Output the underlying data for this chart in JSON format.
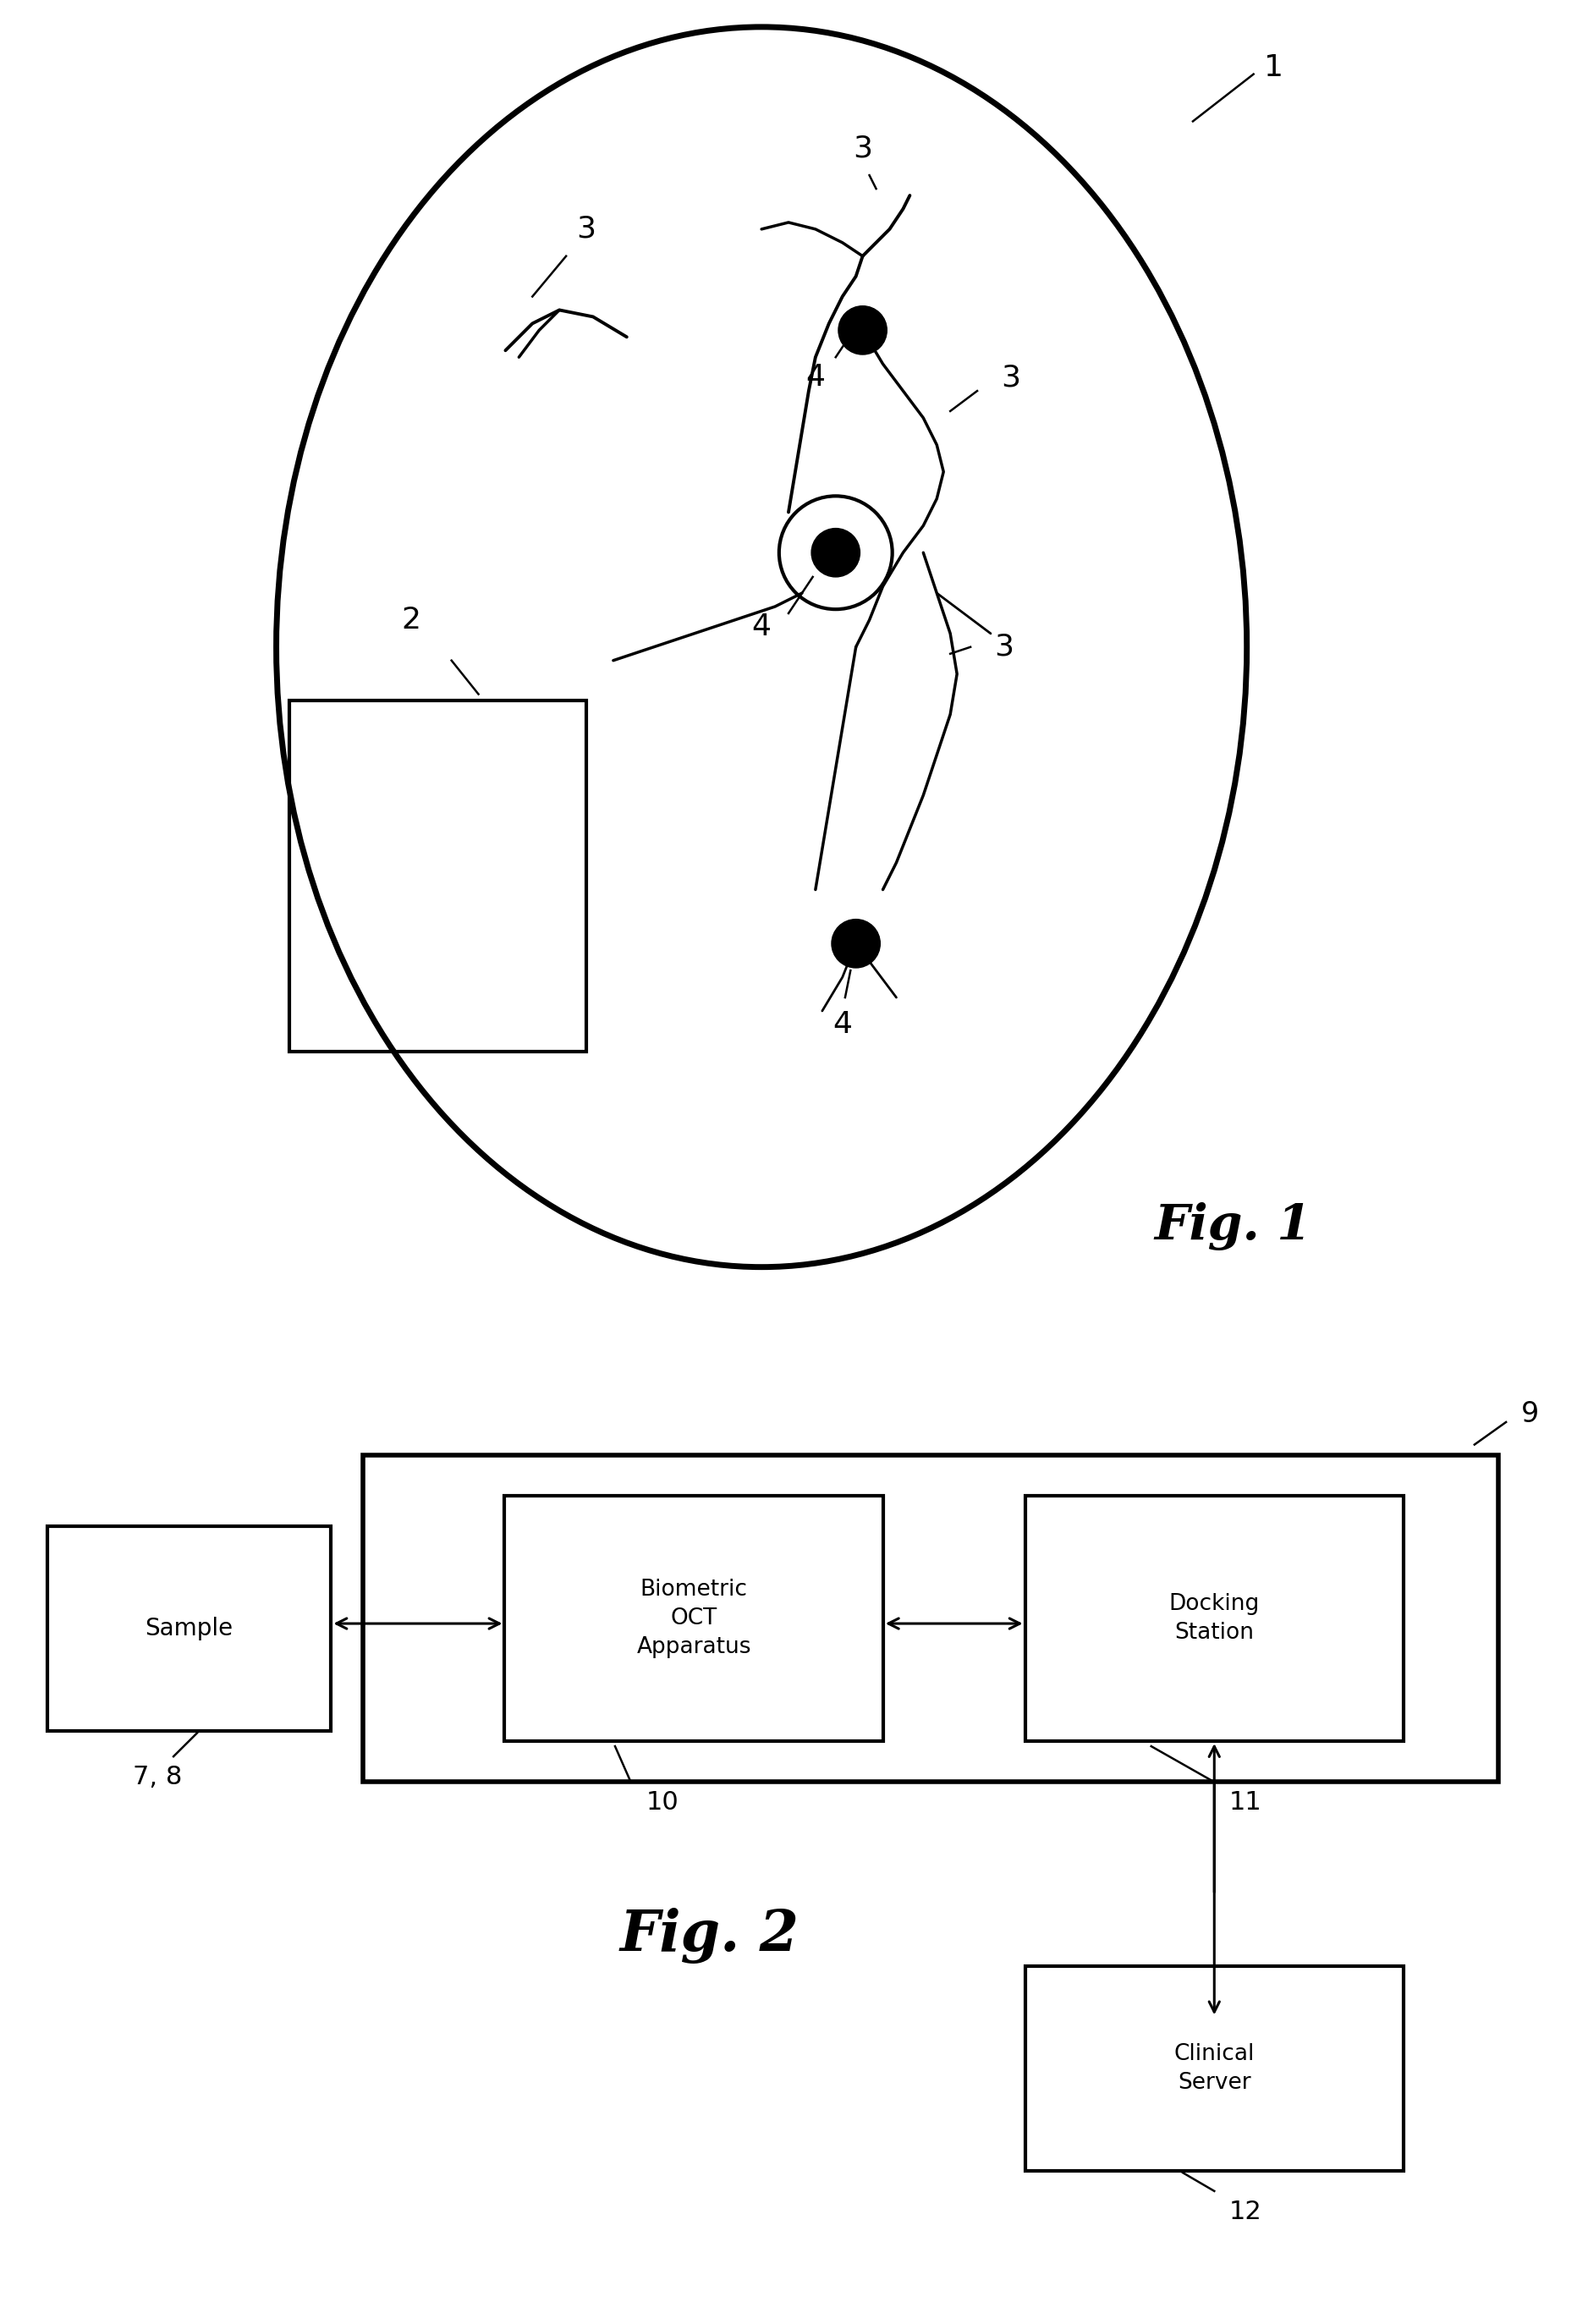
{
  "fig_width": 18.64,
  "fig_height": 27.47,
  "bg_color": "#ffffff",
  "fig1_label": "Fig. 1",
  "fig2_label": "Fig. 2",
  "sample_label": "Sample",
  "sample_ref": "7, 8",
  "oct_label": "Biometric\nOCT\nApparatus",
  "oct_ref": "10",
  "docking_label": "Docking\nStation",
  "docking_ref": "11",
  "system_ref": "9",
  "clinical_label": "Clinical\nServer",
  "clinical_ref": "12"
}
